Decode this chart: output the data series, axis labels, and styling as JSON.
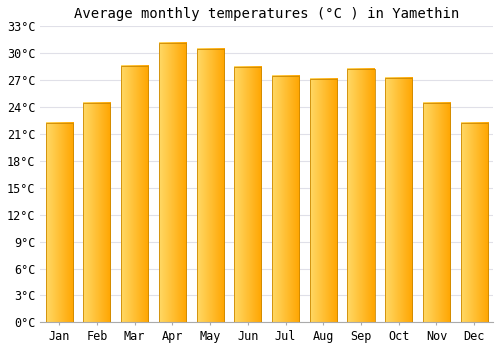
{
  "title": "Average monthly temperatures (°C ) in Yamethin",
  "months": [
    "Jan",
    "Feb",
    "Mar",
    "Apr",
    "May",
    "Jun",
    "Jul",
    "Aug",
    "Sep",
    "Oct",
    "Nov",
    "Dec"
  ],
  "values": [
    22.2,
    24.5,
    28.6,
    31.1,
    30.5,
    28.5,
    27.5,
    27.1,
    28.2,
    27.2,
    24.5,
    22.2
  ],
  "bar_color_left": "#FFD966",
  "bar_color_right": "#FFA500",
  "bar_edge_color": "#CC8800",
  "ylim": [
    0,
    33
  ],
  "yticks": [
    0,
    3,
    6,
    9,
    12,
    15,
    18,
    21,
    24,
    27,
    30,
    33
  ],
  "ytick_labels": [
    "0°C",
    "3°C",
    "6°C",
    "9°C",
    "12°C",
    "15°C",
    "18°C",
    "21°C",
    "24°C",
    "27°C",
    "30°C",
    "33°C"
  ],
  "background_color": "#ffffff",
  "grid_color": "#e0e0e8",
  "title_fontsize": 10,
  "tick_fontsize": 8.5,
  "bar_width": 0.72
}
